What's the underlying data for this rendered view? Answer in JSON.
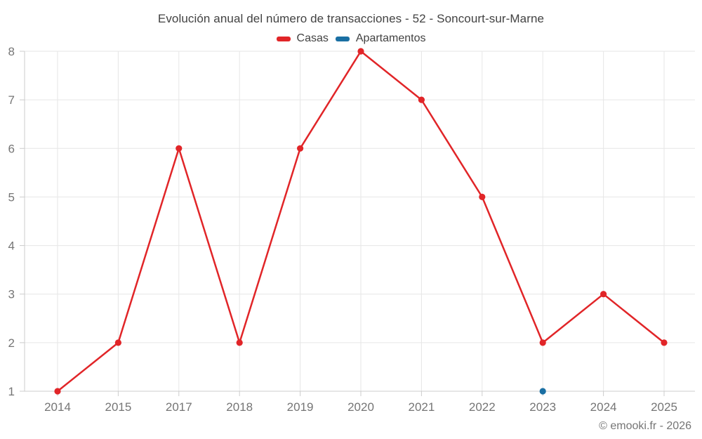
{
  "chart": {
    "title": "Evolución anual del número de transacciones - 52 - Soncourt-sur-Marne",
    "copyright": "© emooki.fr - 2026"
  },
  "chart_data": {
    "type": "line",
    "title": "Evolución anual del número de transacciones - 52 - Soncourt-sur-Marne",
    "categories": [
      "2014",
      "2015",
      "2017",
      "2018",
      "2019",
      "2020",
      "2021",
      "2022",
      "2023",
      "2024",
      "2025"
    ],
    "series": [
      {
        "name": "Casas",
        "color": "#e12528",
        "values": [
          1,
          2,
          6,
          2,
          6,
          8,
          7,
          5,
          2,
          3,
          2
        ]
      },
      {
        "name": "Apartamentos",
        "color": "#1a6fa3",
        "values": [
          null,
          null,
          null,
          null,
          null,
          null,
          null,
          null,
          1,
          null,
          null
        ]
      }
    ],
    "ylim": [
      1,
      8
    ],
    "yticks": [
      1,
      2,
      3,
      4,
      5,
      6,
      7,
      8
    ],
    "grid": true,
    "legend_position": "top",
    "xlabel": "",
    "ylabel": ""
  },
  "colors": {
    "background": "#ffffff",
    "grid": "#e6e6e6",
    "axis": "#cccccc",
    "tick_label": "#757575",
    "title_text": "#424242",
    "legend_text": "#424242",
    "copyright_text": "#757575"
  }
}
